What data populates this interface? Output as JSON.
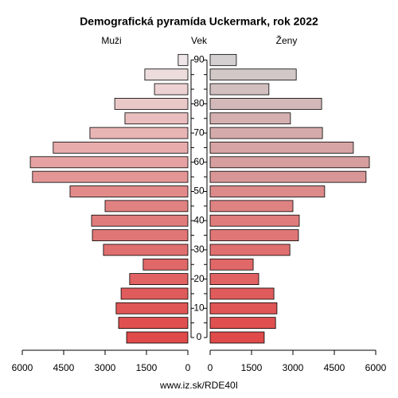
{
  "chart_data": {
    "type": "population-pyramid",
    "title": "Demografická pyramída Uckermark, rok 2022",
    "left_label": "Muži",
    "center_label": "Vek",
    "right_label": "Ženy",
    "footer": "www.iz.sk/RDE40I",
    "categories": [
      "0",
      null,
      "10",
      null,
      "20",
      null,
      "30",
      null,
      "40",
      null,
      "50",
      null,
      "60",
      null,
      "70",
      null,
      "80",
      null,
      null,
      "90"
    ],
    "series": [
      {
        "name": "Muži",
        "side": "left",
        "values": [
          2220,
          2510,
          2600,
          2420,
          2110,
          1620,
          3060,
          3460,
          3490,
          3000,
          4270,
          5630,
          5710,
          4880,
          3550,
          2280,
          2650,
          1210,
          1560,
          350
        ],
        "colors": [
          "#e04a4a",
          "#e05050",
          "#e05656",
          "#e05c5c",
          "#e06262",
          "#e06868",
          "#e07070",
          "#e07676",
          "#e07c7c",
          "#e08282",
          "#e28a8a",
          "#e49696",
          "#e6a2a2",
          "#e8acac",
          "#e8b4b4",
          "#eabebe",
          "#eac8c8",
          "#ecd2d2",
          "#ecdcdc",
          "#eee6e8"
        ]
      },
      {
        "name": "Ženy",
        "side": "right",
        "values": [
          1960,
          2370,
          2420,
          2310,
          1760,
          1560,
          2890,
          3200,
          3230,
          3000,
          4150,
          5650,
          5770,
          5190,
          4070,
          2910,
          4040,
          2130,
          3120,
          950
        ],
        "colors": [
          "#e04a4a",
          "#e05050",
          "#e05656",
          "#e05c5c",
          "#e06262",
          "#e06868",
          "#e07070",
          "#e07676",
          "#e07c7c",
          "#de8282",
          "#dc8a8a",
          "#d89696",
          "#d69e9e",
          "#d6a4a4",
          "#d4aaaa",
          "#d4b0b0",
          "#d2b8b8",
          "#d2c0c0",
          "#d2c8c8",
          "#d4d0d2"
        ]
      }
    ],
    "xlim": [
      0,
      6000
    ],
    "xticks": [
      0,
      1500,
      3000,
      4500,
      6000
    ]
  }
}
